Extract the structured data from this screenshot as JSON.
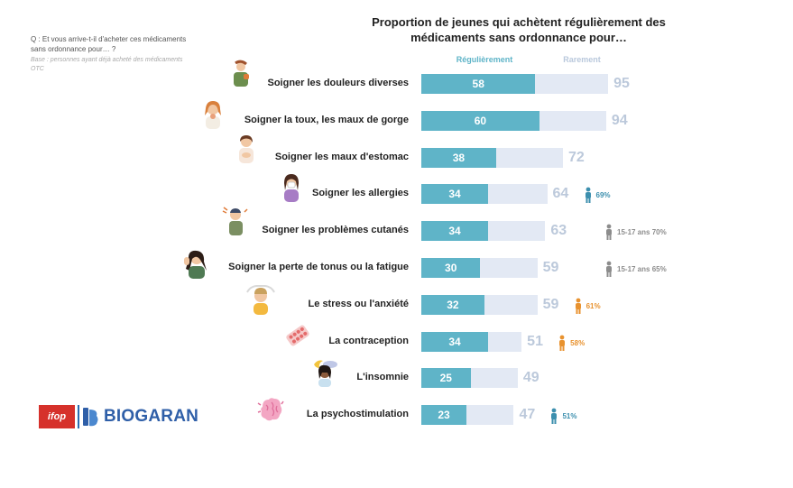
{
  "question": {
    "text": "Q : Et vous arrive-t-il d'acheter ces médicaments sans ordonnance pour… ?",
    "base": "Base : personnes ayant déjà acheté des médicaments OTC"
  },
  "chart_data": {
    "type": "bar",
    "title": "Proportion de jeunes qui achètent régulièrement des médicaments sans ordonnance pour…",
    "series": [
      {
        "name": "Régulièrement",
        "color": "#5fb4c8",
        "values": [
          58,
          60,
          38,
          34,
          34,
          30,
          32,
          34,
          25,
          23
        ]
      },
      {
        "name": "Rarement",
        "color": "#e3e9f4",
        "values": [
          95,
          94,
          72,
          64,
          63,
          59,
          59,
          51,
          49,
          47
        ]
      }
    ],
    "categories": [
      "Soigner les douleurs diverses",
      "Soigner la toux, les maux de gorge",
      "Soigner les maux d'estomac",
      "Soigner les allergies",
      "Soigner les problèmes cutanés",
      "Soigner la perte de tonus ou la fatigue",
      "Le stress ou l'anxiété",
      "La contraception",
      "L'insomnie",
      "La psychostimulation"
    ],
    "annotations": [
      {
        "row": 3,
        "text": "69%",
        "icon": "male-icon",
        "color": "#3c8fae"
      },
      {
        "row": 4,
        "text": "15-17 ans 70%",
        "icon": "teen-icon",
        "color": "#8c8c8c"
      },
      {
        "row": 5,
        "text": "15-17 ans 65%",
        "icon": "teen-icon",
        "color": "#8c8c8c"
      },
      {
        "row": 6,
        "text": "61%",
        "icon": "female-icon",
        "color": "#e8922f"
      },
      {
        "row": 7,
        "text": "58%",
        "icon": "female-icon",
        "color": "#e8922f"
      },
      {
        "row": 9,
        "text": "51%",
        "icon": "male-icon",
        "color": "#3c8fae"
      }
    ]
  },
  "logos": {
    "ifop": "ifop",
    "biogaran": "BIOGARAN"
  },
  "colors": {
    "regular": "#5fb4c8",
    "rare": "#e3e9f4",
    "rare_text": "#bcc9db",
    "ifop_red": "#d6312b",
    "biogaran_blue": "#2f5fa8"
  },
  "illustrations": [
    "man-holding-back-icon",
    "woman-sore-throat-icon",
    "woman-stomach-ache-icon",
    "woman-blowing-nose-icon",
    "man-scratching-icon",
    "woman-tired-icon",
    "woman-stressed-icon",
    "pill-blister-icon",
    "woman-moon-night-icon",
    "brain-icon"
  ]
}
